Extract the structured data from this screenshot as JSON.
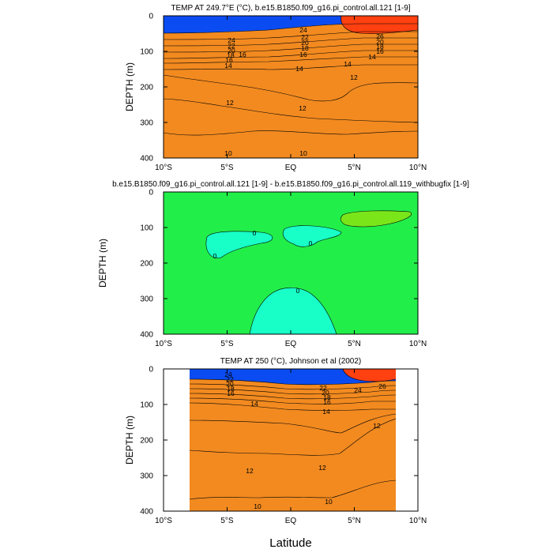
{
  "colors": {
    "t10": "#0a4cf2",
    "t11": "#1c86f0",
    "t12": "#22a8f4",
    "t13": "#1ecdf4",
    "t14": "#30e0ff",
    "t15": "#3ee6c2",
    "t16": "#14d26c",
    "t17": "#8ef018",
    "t18": "#f2ee1a",
    "t19": "#f5b222",
    "t20": "#f28a20",
    "t21": "#ee6018",
    "t26": "#ff4010",
    "diff_bg": "#22ee4a",
    "diff_neg": "#18ffc8",
    "diff_pos": "#7ae61a"
  },
  "chart_data": [
    {
      "type": "contour",
      "title": "TEMP AT 249.7°E (°C), b.e15.B1850.f09_g16.pi_control.all.121 [1-9]",
      "ylabel": "DEPTH (m)",
      "xlim": [
        -10,
        10
      ],
      "ylim": [
        400,
        0
      ],
      "x_ticks": [
        "10°S",
        "5°S",
        "EQ",
        "5°N",
        "10°N"
      ],
      "y_ticks": [
        "0",
        "100",
        "200",
        "300",
        "400"
      ],
      "contour_labels": [
        "24",
        "22",
        "20",
        "18",
        "16",
        "14",
        "14",
        "16",
        "14",
        "12",
        "12",
        "12",
        "10",
        "10",
        "26",
        "24",
        "22",
        "20",
        "18",
        "16",
        "14",
        "20",
        "18",
        "16"
      ]
    },
    {
      "type": "contour",
      "title": "b.e15.B1850.f09_g16.pi_control.all.121 [1-9] - b.e15.B1850.f09_g16.pi_control.all.119_withbugfix [1-9]",
      "ylabel": "DEPTH (m)",
      "xlim": [
        -10,
        10
      ],
      "ylim": [
        400,
        0
      ],
      "x_ticks": [
        "10°S",
        "5°S",
        "EQ",
        "5°N",
        "10°N"
      ],
      "y_ticks": [
        "0",
        "100",
        "200",
        "300",
        "400"
      ],
      "contour_labels": [
        "0",
        "0",
        "0",
        "0"
      ]
    },
    {
      "type": "contour",
      "title": "TEMP AT 250 (°C), Johnson et al (2002)",
      "ylabel": "DEPTH (m)",
      "xlim": [
        -10,
        10
      ],
      "ylim": [
        400,
        0
      ],
      "x_ticks": [
        "10°S",
        "5°S",
        "EQ",
        "5°N",
        "10°N"
      ],
      "y_ticks": [
        "0",
        "100",
        "200",
        "300",
        "400"
      ],
      "contour_labels": [
        "24",
        "22",
        "20",
        "18",
        "16",
        "14",
        "14",
        "22",
        "20",
        "18",
        "16",
        "24",
        "26",
        "12",
        "12",
        "12",
        "10",
        "10"
      ]
    }
  ],
  "x_axis_label": "Latitude"
}
